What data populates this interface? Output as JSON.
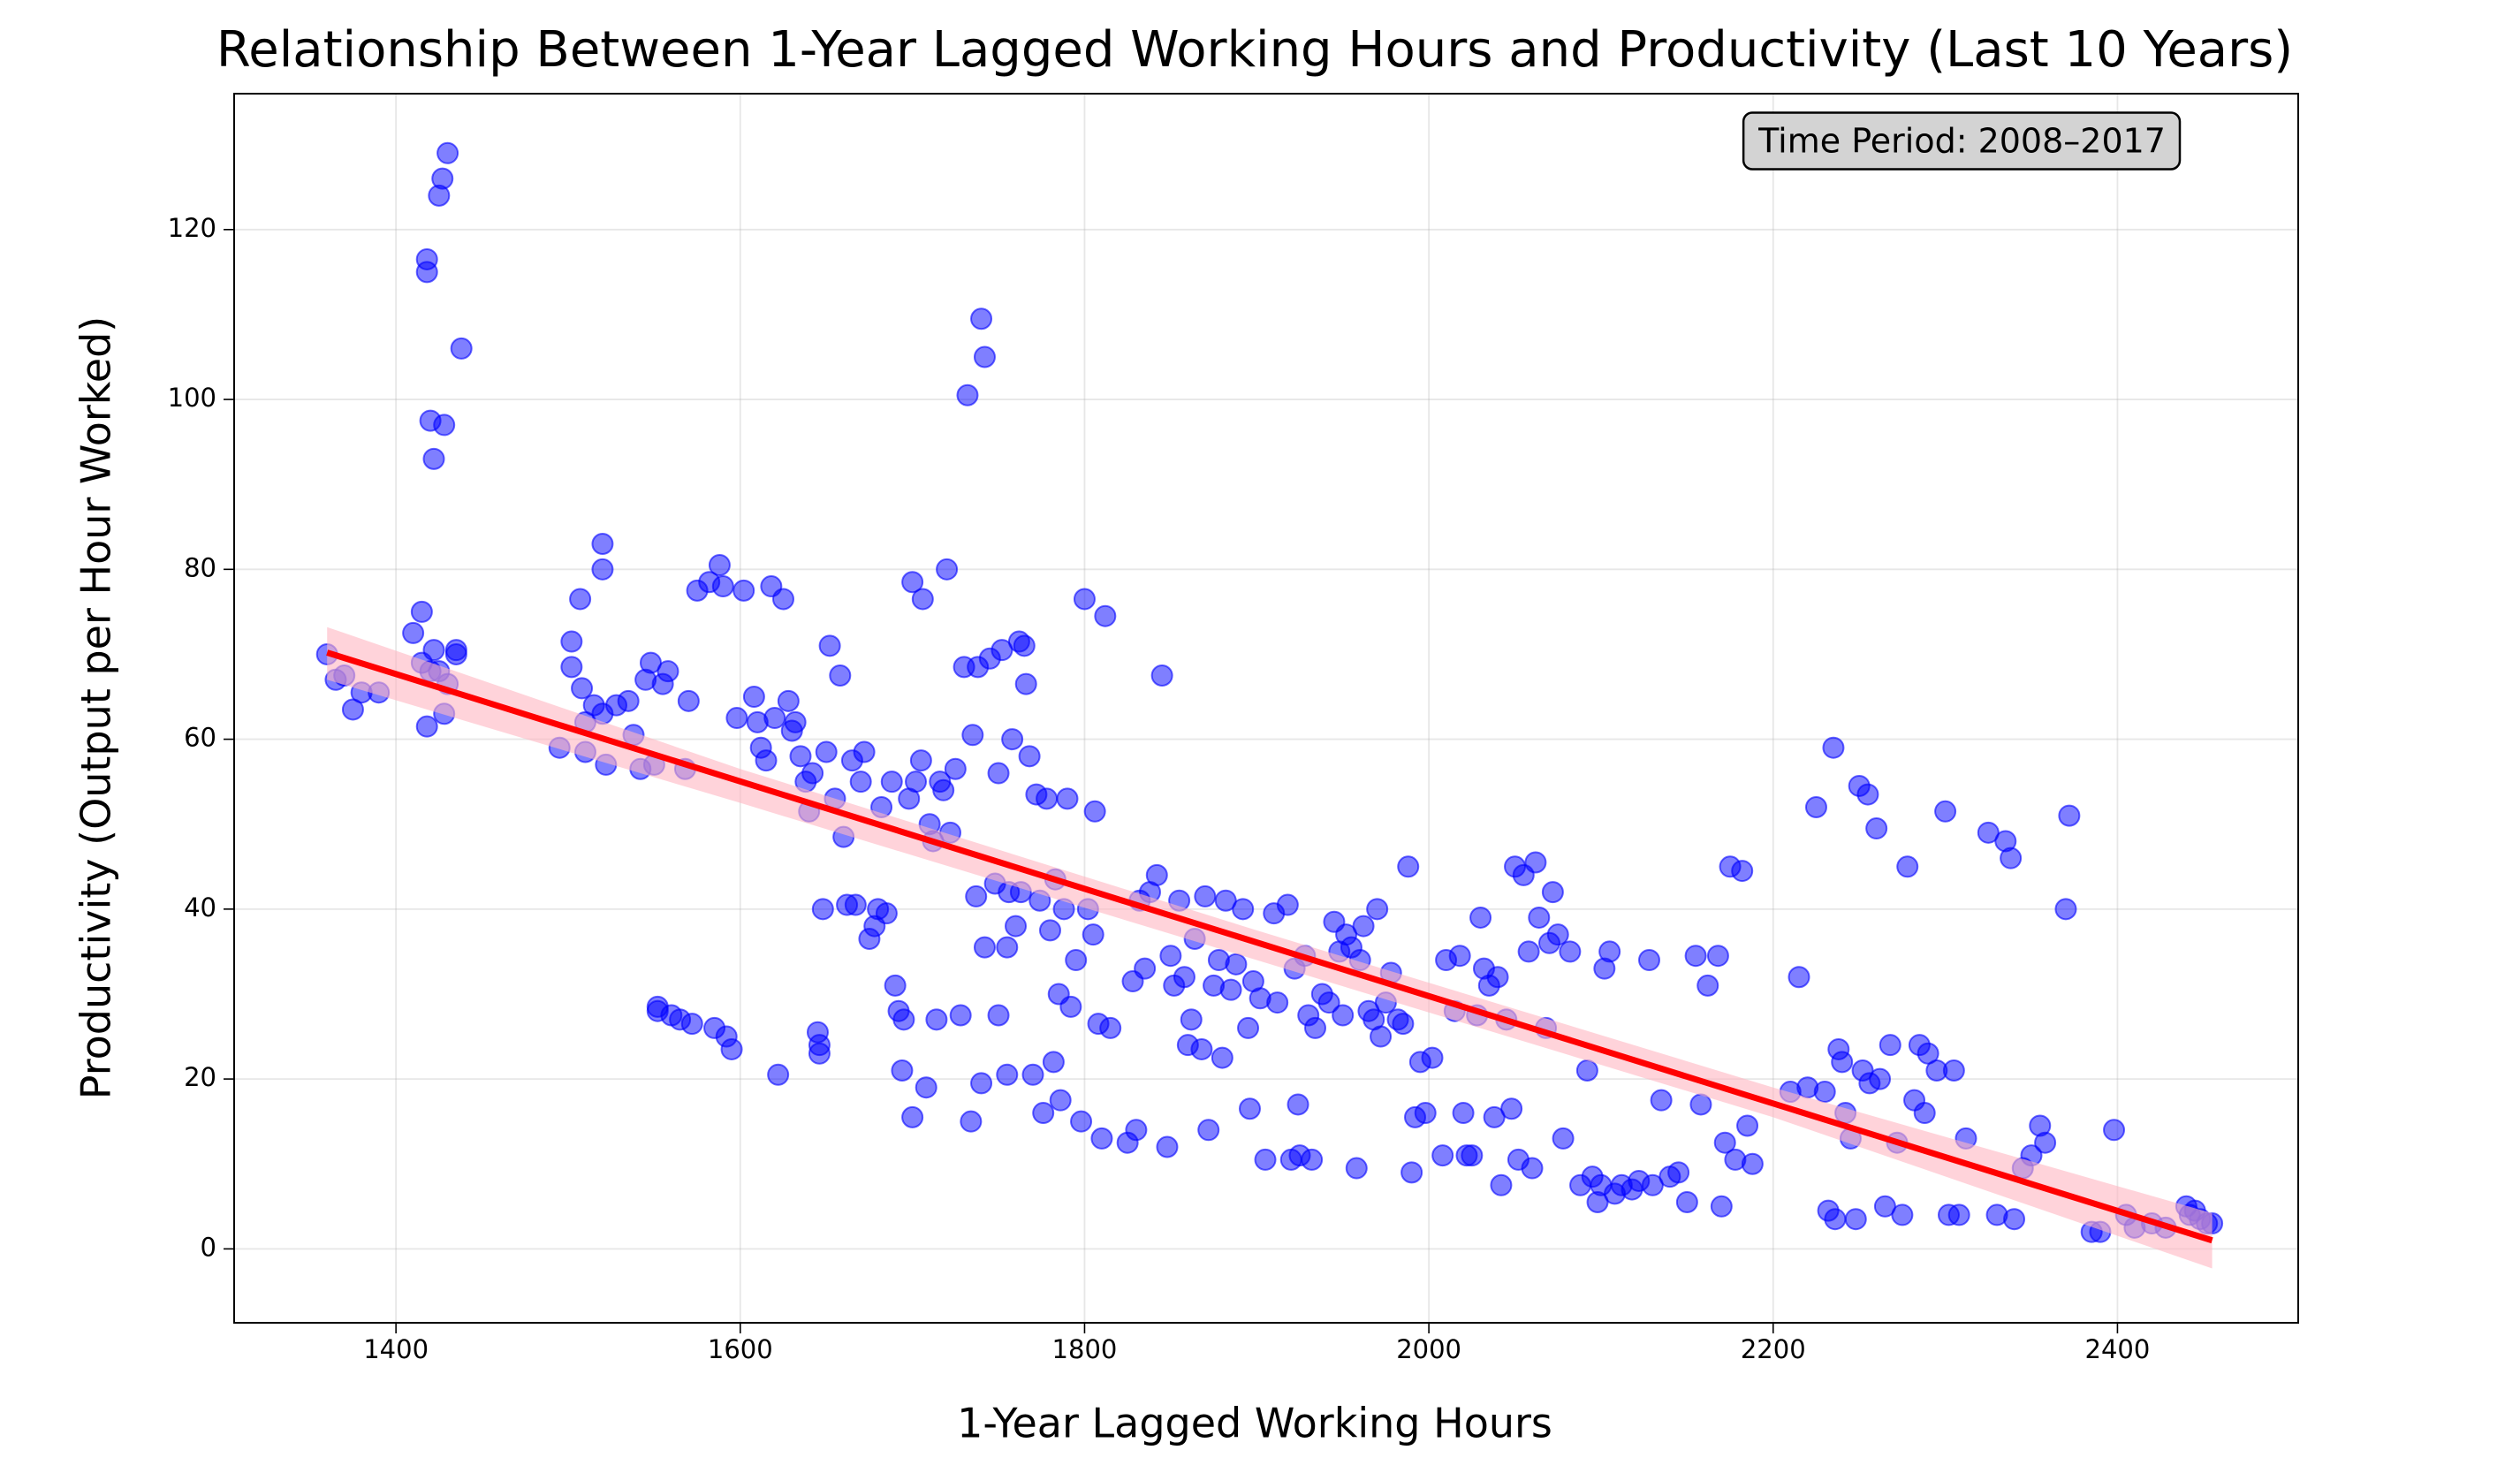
{
  "chart_data": {
    "type": "scatter",
    "title": "Relationship Between 1-Year Lagged Working Hours and Productivity (Last 10 Years)",
    "x_label": "1-Year Lagged Working Hours",
    "y_label": "Productivity (Output per Hour Worked)",
    "annotation": "Time Period: 2008–2017",
    "color": "blue",
    "grid": true,
    "xlim": [
      1306,
      2505
    ],
    "ylim": [
      -8.7,
      136
    ],
    "xticks": [
      1400,
      1600,
      1800,
      2000,
      2200,
      2400
    ],
    "yticks": [
      0,
      20,
      40,
      60,
      80,
      100,
      120
    ],
    "x": [
      1360,
      1365,
      1370,
      1375,
      1380,
      1390,
      1410,
      1415,
      1415,
      1418,
      1420,
      1422,
      1425,
      1428,
      1430,
      1435,
      1435,
      1418,
      1418,
      1425,
      1427,
      1430,
      1438,
      1420,
      1428,
      1422,
      1495,
      1502,
      1502,
      1507,
      1508,
      1510,
      1510,
      1515,
      1520,
      1520,
      1520,
      1522,
      1528,
      1535,
      1538,
      1542,
      1545,
      1548,
      1550,
      1555,
      1558,
      1552,
      1552,
      1560,
      1565,
      1570,
      1568,
      1572,
      1575,
      1582,
      1585,
      1588,
      1590,
      1592,
      1595,
      1598,
      1602,
      1608,
      1610,
      1612,
      1615,
      1618,
      1620,
      1622,
      1625,
      1628,
      1630,
      1632,
      1635,
      1638,
      1640,
      1642,
      1645,
      1646,
      1646,
      1648,
      1650,
      1652,
      1655,
      1658,
      1660,
      1662,
      1665,
      1667,
      1670,
      1672,
      1675,
      1678,
      1680,
      1682,
      1685,
      1688,
      1690,
      1692,
      1694,
      1695,
      1698,
      1700,
      1700,
      1702,
      1705,
      1706,
      1708,
      1710,
      1712,
      1714,
      1716,
      1718,
      1720,
      1722,
      1725,
      1728,
      1730,
      1732,
      1734,
      1735,
      1737,
      1738,
      1740,
      1740,
      1742,
      1742,
      1745,
      1748,
      1750,
      1750,
      1752,
      1755,
      1755,
      1756,
      1758,
      1760,
      1762,
      1763,
      1765,
      1766,
      1768,
      1770,
      1772,
      1774,
      1776,
      1778,
      1780,
      1782,
      1783,
      1785,
      1786,
      1788,
      1790,
      1792,
      1795,
      1798,
      1800,
      1802,
      1805,
      1806,
      1808,
      1810,
      1812,
      1815,
      1825,
      1828,
      1830,
      1832,
      1835,
      1838,
      1842,
      1845,
      1848,
      1850,
      1852,
      1855,
      1858,
      1860,
      1862,
      1864,
      1868,
      1870,
      1872,
      1875,
      1878,
      1880,
      1882,
      1885,
      1888,
      1892,
      1895,
      1896,
      1898,
      1902,
      1905,
      1910,
      1912,
      1918,
      1920,
      1922,
      1924,
      1925,
      1928,
      1930,
      1932,
      1934,
      1938,
      1942,
      1945,
      1948,
      1950,
      1952,
      1955,
      1958,
      1960,
      1962,
      1965,
      1968,
      1970,
      1972,
      1975,
      1978,
      1982,
      1985,
      1988,
      1990,
      1992,
      1995,
      1998,
      2002,
      2008,
      2010,
      2015,
      2018,
      2020,
      2022,
      2025,
      2028,
      2030,
      2032,
      2035,
      2038,
      2040,
      2042,
      2045,
      2048,
      2050,
      2052,
      2055,
      2058,
      2060,
      2062,
      2064,
      2068,
      2070,
      2072,
      2075,
      2078,
      2082,
      2088,
      2092,
      2095,
      2098,
      2100,
      2102,
      2105,
      2108,
      2112,
      2118,
      2122,
      2128,
      2130,
      2135,
      2140,
      2145,
      2150,
      2155,
      2158,
      2162,
      2168,
      2170,
      2172,
      2175,
      2178,
      2182,
      2185,
      2188,
      2210,
      2215,
      2220,
      2225,
      2230,
      2232,
      2235,
      2236,
      2238,
      2240,
      2242,
      2245,
      2248,
      2250,
      2252,
      2255,
      2256,
      2260,
      2262,
      2265,
      2268,
      2272,
      2275,
      2278,
      2282,
      2285,
      2288,
      2290,
      2295,
      2300,
      2302,
      2305,
      2308,
      2312,
      2325,
      2330,
      2335,
      2338,
      2340,
      2345,
      2350,
      2355,
      2358,
      2370,
      2372,
      2385,
      2390,
      2398,
      2405,
      2410,
      2420,
      2428,
      2440,
      2442,
      2445,
      2448,
      2452,
      2455
    ],
    "values": [
      70,
      67,
      67.5,
      63.5,
      65.5,
      65.5,
      72.5,
      75,
      69,
      61.5,
      68,
      70.5,
      68,
      63,
      66.5,
      70,
      70.5,
      115,
      116.5,
      124,
      126,
      129,
      106,
      97.5,
      97,
      93,
      59,
      71.5,
      68.5,
      76.5,
      66,
      62,
      58.5,
      64,
      83,
      80,
      63,
      57,
      64,
      64.5,
      60.5,
      56.5,
      67,
      69,
      57,
      66.5,
      68,
      28,
      28.5,
      27.5,
      27,
      64.5,
      56.5,
      26.5,
      77.5,
      78.5,
      26,
      80.5,
      78,
      25,
      23.5,
      62.5,
      77.5,
      65,
      62,
      59,
      57.5,
      78,
      62.5,
      20.5,
      76.5,
      64.5,
      61,
      62,
      58,
      55,
      51.5,
      56,
      25.5,
      24,
      23,
      40,
      58.5,
      71,
      53,
      67.5,
      48.5,
      40.5,
      57.5,
      40.5,
      55,
      58.5,
      36.5,
      38,
      40,
      52,
      39.5,
      55,
      31,
      28,
      21,
      27,
      53,
      15.5,
      78.5,
      55,
      57.5,
      76.5,
      19,
      50,
      48,
      27,
      55,
      54,
      80,
      49,
      56.5,
      27.5,
      68.5,
      100.5,
      15,
      60.5,
      41.5,
      68.5,
      19.5,
      109.5,
      35.5,
      105,
      69.5,
      43,
      56,
      27.5,
      70.5,
      35.5,
      20.5,
      42,
      60,
      38,
      71.5,
      42,
      71,
      66.5,
      58,
      20.5,
      53.5,
      41,
      16,
      53,
      37.5,
      22,
      43.5,
      30,
      17.5,
      40,
      53,
      28.5,
      34,
      15,
      76.5,
      40,
      37,
      51.5,
      26.5,
      13,
      74.5,
      26,
      12.5,
      31.5,
      14,
      41,
      33,
      42,
      44,
      67.5,
      12,
      34.5,
      31,
      41,
      32,
      24,
      27,
      36.5,
      23.5,
      41.5,
      14,
      31,
      34,
      22.5,
      41,
      30.5,
      33.5,
      40,
      26,
      16.5,
      31.5,
      29.5,
      10.5,
      39.5,
      29,
      40.5,
      10.5,
      33,
      17,
      11,
      34.5,
      27.5,
      10.5,
      26,
      30,
      29,
      38.5,
      35,
      27.5,
      37,
      35.5,
      9.5,
      34,
      38,
      28,
      27,
      40,
      25,
      29,
      32.5,
      27,
      26.5,
      45,
      9,
      15.5,
      22,
      16,
      22.5,
      11,
      34,
      28,
      34.5,
      16,
      11,
      11,
      27.5,
      39,
      33,
      31,
      15.5,
      32,
      7.5,
      27,
      16.5,
      45,
      10.5,
      44,
      35,
      9.5,
      45.5,
      39,
      26,
      36,
      42,
      37,
      13,
      35,
      7.5,
      21,
      8.5,
      5.5,
      7.5,
      33,
      35,
      6.5,
      7.5,
      7,
      8,
      34,
      7.5,
      17.5,
      8.5,
      9,
      5.5,
      34.5,
      17,
      31,
      34.5,
      5,
      12.5,
      45,
      10.5,
      44.5,
      14.5,
      10,
      18.5,
      32,
      19,
      52,
      18.5,
      4.5,
      59,
      3.5,
      23.5,
      22,
      16,
      13,
      3.5,
      54.5,
      21,
      53.5,
      19.5,
      49.5,
      20,
      5,
      24,
      12.5,
      4,
      45,
      17.5,
      24,
      16,
      23,
      21,
      51.5,
      4,
      21,
      4,
      13,
      49,
      4,
      48,
      46,
      3.5,
      9.5,
      11,
      14.5,
      12.5,
      40,
      51,
      2,
      2,
      14,
      4,
      2.5,
      3,
      2.5,
      5,
      4,
      4.5,
      3.5,
      3,
      3
    ],
    "trend": {
      "color": "red",
      "band_color": "#ffb6c1",
      "x": [
        1360,
        2455
      ],
      "values": [
        70.2,
        1.0
      ],
      "band_x": [
        1360,
        1600,
        1900,
        2200,
        2455
      ],
      "band_upper": [
        73.2,
        56.5,
        37.5,
        19,
        4.2
      ],
      "band_lower": [
        67,
        52.5,
        34,
        15.5,
        -2.3
      ]
    }
  }
}
